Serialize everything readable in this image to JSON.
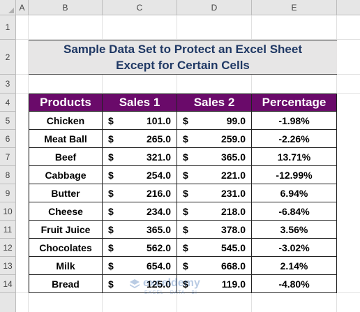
{
  "columns": [
    "A",
    "B",
    "C",
    "D",
    "E"
  ],
  "rows": [
    "1",
    "2",
    "3",
    "4",
    "5",
    "6",
    "7",
    "8",
    "9",
    "10",
    "11",
    "12",
    "13",
    "14"
  ],
  "title": {
    "line1": "Sample Data Set to Protect an Excel Sheet",
    "line2": "Except for Certain Cells",
    "color": "#1f3864"
  },
  "table": {
    "header_color": "#6a0a6a",
    "headers": [
      "Products",
      "Sales 1",
      "Sales 2",
      "Percentage"
    ],
    "currency_symbol": "$",
    "rows": [
      {
        "product": "Chicken",
        "sales1": "101.0",
        "sales2": "99.0",
        "pct": "-1.98%"
      },
      {
        "product": "Meat Ball",
        "sales1": "265.0",
        "sales2": "259.0",
        "pct": "-2.26%"
      },
      {
        "product": "Beef",
        "sales1": "321.0",
        "sales2": "365.0",
        "pct": "13.71%"
      },
      {
        "product": "Cabbage",
        "sales1": "254.0",
        "sales2": "221.0",
        "pct": "-12.99%"
      },
      {
        "product": "Butter",
        "sales1": "216.0",
        "sales2": "231.0",
        "pct": "6.94%"
      },
      {
        "product": "Cheese",
        "sales1": "234.0",
        "sales2": "218.0",
        "pct": "-6.84%"
      },
      {
        "product": "Fruit Juice",
        "sales1": "365.0",
        "sales2": "378.0",
        "pct": "3.56%"
      },
      {
        "product": "Chocolates",
        "sales1": "562.0",
        "sales2": "545.0",
        "pct": "-3.02%"
      },
      {
        "product": "Milk",
        "sales1": "654.0",
        "sales2": "668.0",
        "pct": "2.14%"
      },
      {
        "product": "Bread",
        "sales1": "125.0",
        "sales2": "119.0",
        "pct": "-4.80%"
      }
    ]
  },
  "watermark": {
    "name": "exceldemy",
    "tagline": "EXCEL · DATA · BI",
    "icon": "exceldemy-logo-icon"
  }
}
